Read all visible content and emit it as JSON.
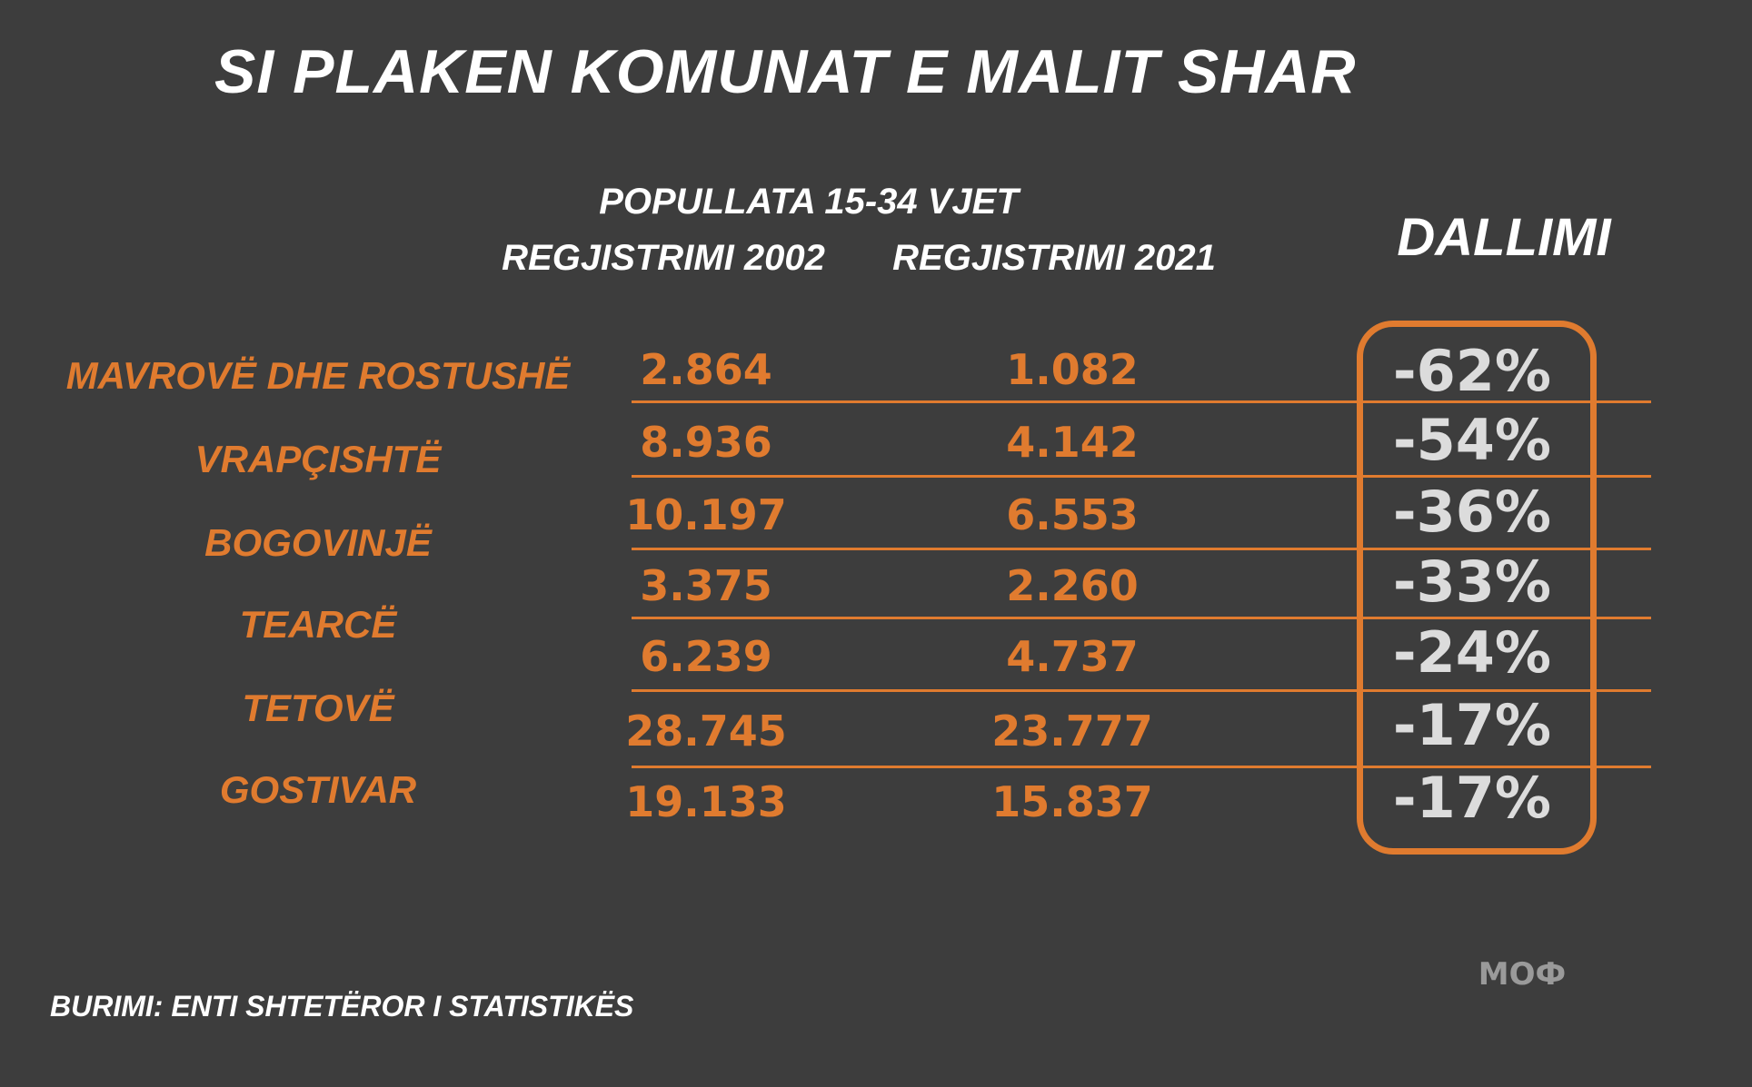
{
  "title": "SI PLAKEN KOMUNAT E MALIT SHAR",
  "subtitle": "POPULLATA 15-34 VJET",
  "column_headers": {
    "census_2002": "REGJISTRIMI 2002",
    "census_2021": "REGJISTRIMI 2021",
    "difference": "DALLIMI"
  },
  "source": "BURIMI: ENTI SHTETËROR I STATISTIKËS",
  "logo_text": "MOФ",
  "colors": {
    "accent": "#e07b2f",
    "background": "#3d3d3d",
    "text": "#ffffff",
    "percent": "#dcdcdc"
  },
  "chart_data": {
    "type": "table",
    "title": "SI PLAKEN KOMUNAT E MALIT SHAR",
    "subtitle": "POPULLATA 15-34 VJET",
    "columns": [
      "REGJISTRIMI 2002",
      "REGJISTRIMI 2021",
      "DALLIMI"
    ],
    "rows": [
      {
        "name": "MAVROVË DHE ROSTUSHË",
        "v2002": "2.864",
        "v2021": "1.082",
        "diff": "-62%"
      },
      {
        "name": "VRAPÇISHTË",
        "v2002": "8.936",
        "v2021": "4.142",
        "diff": "-54%"
      },
      {
        "name": "BOGOVINJË",
        "v2002": "10.197",
        "v2021": "6.553",
        "diff": "-36%"
      },
      {
        "name": "TEARCË",
        "v2002": "3.375",
        "v2021": "2.260",
        "diff": "-33%"
      },
      {
        "name": "TETOVË",
        "v2002": "6.239",
        "v2021": "4.737",
        "diff": "-24%"
      },
      {
        "name": "GOSTIVAR",
        "v2002": "28.745",
        "v2021": "23.777",
        "diff": "-17%"
      },
      {
        "name": "",
        "v2002": "19.133",
        "v2021": "15.837",
        "diff": "-17%"
      }
    ]
  }
}
